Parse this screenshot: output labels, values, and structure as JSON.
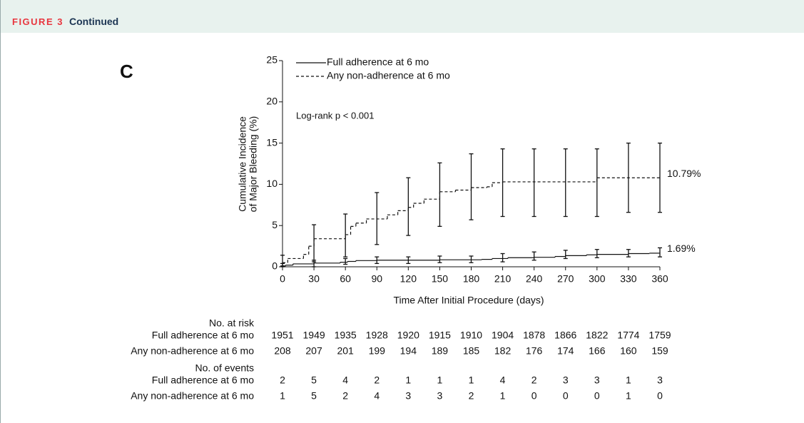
{
  "header": {
    "label": "FIGURE 3",
    "title": "Continued"
  },
  "chart_data": {
    "type": "step",
    "panel": "C",
    "y_label": [
      "Cumulative Incidence",
      "of Major Bleeding (%)"
    ],
    "x_label": "Time After Initial Procedure (days)",
    "annotation": "Log-rank p < 0.001",
    "xlim": [
      0,
      360
    ],
    "xticks": [
      0,
      30,
      60,
      90,
      120,
      150,
      180,
      210,
      240,
      270,
      300,
      330,
      360
    ],
    "ylim": [
      0,
      25
    ],
    "yticks": [
      0,
      5,
      10,
      15,
      20,
      25
    ],
    "series": [
      {
        "name": "Full adherence at 6 mo",
        "color": "#111111",
        "style": "solid",
        "x": [
          0,
          3,
          10,
          30,
          55,
          62,
          70,
          90,
          150,
          190,
          200,
          215,
          240,
          260,
          270,
          290,
          300,
          330,
          350,
          360
        ],
        "values": [
          0.1,
          0.2,
          0.35,
          0.45,
          0.55,
          0.65,
          0.75,
          0.8,
          0.85,
          0.9,
          1.0,
          1.1,
          1.15,
          1.25,
          1.35,
          1.45,
          1.5,
          1.6,
          1.65,
          1.69
        ],
        "ci_x": [
          0,
          30,
          60,
          90,
          120,
          150,
          180,
          210,
          240,
          270,
          300,
          330,
          360
        ],
        "ci_lower": [
          0,
          0,
          0.3,
          0.4,
          0.4,
          0.5,
          0.5,
          0.6,
          0.8,
          1.0,
          1.1,
          1.2,
          1.2
        ],
        "ci_upper": [
          0.4,
          0.8,
          1.0,
          1.2,
          1.2,
          1.3,
          1.3,
          1.6,
          1.8,
          2.0,
          2.1,
          2.1,
          2.3
        ],
        "end_label": {
          "value": 1.69,
          "label": "1.69%"
        }
      },
      {
        "name": "Any non-adherence at 6 mo",
        "color": "#111111",
        "style": "dashed",
        "x": [
          0,
          5,
          20,
          25,
          30,
          60,
          65,
          70,
          80,
          100,
          110,
          120,
          125,
          135,
          150,
          165,
          180,
          195,
          200,
          210,
          300,
          360
        ],
        "values": [
          0.5,
          1.0,
          1.5,
          2.5,
          3.4,
          3.9,
          4.9,
          5.3,
          5.8,
          6.3,
          6.8,
          7.2,
          7.7,
          8.2,
          9.1,
          9.3,
          9.6,
          9.7,
          10.2,
          10.3,
          10.79,
          10.79
        ],
        "ci_x": [
          0,
          30,
          60,
          90,
          120,
          150,
          180,
          210,
          240,
          270,
          300,
          330,
          360
        ],
        "ci_lower": [
          0.1,
          0.6,
          1.2,
          2.7,
          3.8,
          4.9,
          5.7,
          6.1,
          6.1,
          6.1,
          6.1,
          6.6,
          6.6
        ],
        "ci_upper": [
          1.4,
          5.1,
          6.4,
          9.0,
          10.8,
          12.6,
          13.7,
          14.3,
          14.3,
          14.3,
          14.3,
          15.0,
          15.0
        ],
        "end_label": {
          "value": 10.79,
          "label": "10.79%"
        }
      }
    ]
  },
  "risk_table": {
    "title": "No. at risk",
    "rows": [
      {
        "label": "Full adherence at 6 mo",
        "values": [
          1951,
          1949,
          1935,
          1928,
          1920,
          1915,
          1910,
          1904,
          1878,
          1866,
          1822,
          1774,
          1759
        ]
      },
      {
        "label": "Any non-adherence at 6 mo",
        "values": [
          208,
          207,
          201,
          199,
          194,
          189,
          185,
          182,
          176,
          174,
          166,
          160,
          159
        ]
      }
    ]
  },
  "events_table": {
    "title": "No. of events",
    "rows": [
      {
        "label": "Full adherence at 6 mo",
        "values": [
          2,
          5,
          4,
          2,
          1,
          1,
          1,
          4,
          2,
          3,
          3,
          1,
          3
        ]
      },
      {
        "label": "Any non-adherence at 6 mo",
        "values": [
          1,
          5,
          2,
          4,
          3,
          3,
          2,
          1,
          0,
          0,
          0,
          1,
          0
        ]
      }
    ]
  }
}
